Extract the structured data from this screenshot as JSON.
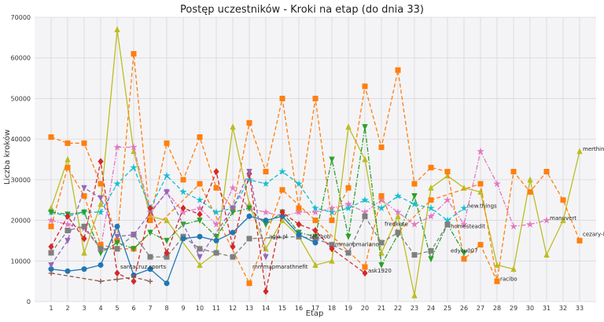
{
  "chart_data": {
    "type": "line",
    "title": "Postęp uczestników - Kroki na etap (do dnia 33)",
    "xlabel": "Etap",
    "ylabel": "Liczba kroków",
    "x": [
      1,
      2,
      3,
      4,
      5,
      6,
      7,
      8,
      9,
      10,
      11,
      12,
      13,
      14,
      15,
      16,
      17,
      18,
      19,
      20,
      21,
      22,
      23,
      24,
      25,
      26,
      27,
      28,
      29,
      30,
      31,
      32,
      33
    ],
    "ylim": [
      0,
      70000
    ],
    "yticks": [
      0,
      10000,
      20000,
      30000,
      40000,
      50000,
      60000,
      70000
    ],
    "grid": true,
    "series": [
      {
        "name": "merthin",
        "color": "#bcbd22",
        "marker": "triangle-up",
        "dash": "solid",
        "values": [
          23000,
          35000,
          12000,
          24000,
          67000,
          37000,
          21000,
          20000,
          null,
          9000,
          12000,
          43000,
          24000,
          13000,
          20000,
          16000,
          9000,
          10000,
          43000,
          35000,
          12000,
          21000,
          1500,
          28000,
          31000,
          28000,
          27000,
          9000,
          8000,
          30000,
          11500,
          20000,
          37000
        ]
      },
      {
        "name": "manuvert",
        "color": "#e377c2",
        "marker": "star",
        "dash": "dashdot",
        "values": [
          20000,
          19000,
          18000,
          13000,
          38000,
          38000,
          22000,
          27000,
          22000,
          23000,
          19000,
          28000,
          23000,
          22000,
          21000,
          22000,
          22000,
          23000,
          24000,
          22000,
          25000,
          22000,
          19000,
          21000,
          25000,
          19000,
          37000,
          29000,
          18500,
          19000,
          20000,
          null,
          null
        ]
      },
      {
        "name": "cezary-io",
        "color": "#ff7f0e",
        "marker": "square",
        "dash": "dashed",
        "values": [
          40500,
          39000,
          39000,
          29000,
          15000,
          61000,
          20000,
          39000,
          30000,
          40500,
          28000,
          23000,
          44000,
          32000,
          50000,
          23000,
          50000,
          20000,
          28000,
          53000,
          38000,
          57000,
          29000,
          33000,
          32000,
          10500,
          14000,
          5000,
          32000,
          27000,
          32000,
          25000,
          15000
        ]
      },
      {
        "name": "racibo",
        "color": "#ff7f0e",
        "marker": "square",
        "dash": "dashed",
        "values": [
          18500,
          33000,
          26000,
          14000,
          13000,
          13000,
          null,
          null,
          null,
          29000,
          null,
          null,
          4500,
          null,
          27500,
          null,
          20000,
          null,
          null,
          8500,
          26000,
          17000,
          null,
          25000,
          null,
          null,
          29000,
          5000,
          null,
          null,
          null,
          null,
          null
        ]
      },
      {
        "name": "new.things",
        "color": "#17becf",
        "marker": "star",
        "dash": "dashed",
        "values": [
          22000,
          21000,
          22000,
          22000,
          29000,
          33000,
          23000,
          31000,
          27000,
          25000,
          22000,
          23000,
          30000,
          29000,
          32000,
          29000,
          23000,
          22000,
          23000,
          25000,
          23000,
          26000,
          24000,
          23000,
          20000,
          23000,
          null,
          null,
          null,
          null,
          null,
          null,
          null
        ]
      },
      {
        "name": "edycu007",
        "color": "#2ca02c",
        "marker": "triangle-down",
        "dash": "dashdot",
        "values": [
          22000,
          21500,
          22000,
          12000,
          14500,
          13000,
          17000,
          15000,
          19000,
          20000,
          16000,
          22000,
          23000,
          19000,
          22000,
          17000,
          16000,
          35000,
          16000,
          43000,
          9000,
          16500,
          26000,
          10500,
          19000,
          12000,
          null,
          null,
          null,
          null,
          null,
          null,
          null
        ]
      },
      {
        "name": "homesteadit",
        "color": "#7f7f7f",
        "marker": "square",
        "dash": "dashed",
        "values": [
          12000,
          17500,
          18500,
          13000,
          13000,
          16500,
          11000,
          11000,
          16000,
          13000,
          12000,
          11000,
          15500,
          null,
          null,
          16000,
          15500,
          14000,
          12000,
          21000,
          14500,
          17000,
          11500,
          12500,
          19000,
          null,
          null,
          null,
          null,
          null,
          null,
          null,
          null
        ]
      },
      {
        "name": "fredkese",
        "color": "#1f77b4",
        "marker": "circle",
        "dash": "solid",
        "values": [
          8000,
          7500,
          8000,
          9000,
          18500,
          6500,
          8000,
          4500,
          15500,
          16000,
          15000,
          17000,
          21000,
          20000,
          21000,
          16500,
          14500,
          null,
          null,
          null,
          null,
          null,
          null,
          null,
          null,
          null,
          null,
          null,
          null,
          null,
          null,
          null,
          null
        ]
      },
      {
        "name": "mmanpmariano",
        "color": "#d62728",
        "marker": "diamond",
        "dash": "dashed",
        "values": [
          13500,
          21000,
          15500,
          34500,
          7000,
          5000,
          23000,
          12000,
          23000,
          21500,
          32000,
          13500,
          31500,
          2500,
          22000,
          19000,
          17500,
          13000,
          null,
          7000,
          null,
          null,
          null,
          null,
          null,
          null,
          null,
          null,
          null,
          null,
          null,
          null,
          null
        ]
      },
      {
        "name": "mmmapmarathnefit",
        "color": "#9467bd",
        "marker": "triangle-down",
        "dash": "dashed",
        "values": [
          9000,
          15000,
          28000,
          25500,
          16000,
          16500,
          null,
          27000,
          null,
          11000,
          null,
          23000,
          32000,
          11000,
          null,
          null,
          null,
          null,
          null,
          null,
          null,
          null,
          null,
          null,
          null,
          null,
          null,
          null,
          null,
          null,
          null,
          null,
          null
        ]
      },
      {
        "name": "santacruz.sports",
        "color": "#8c564b",
        "marker": "plus",
        "dash": "dashed",
        "values": [
          7000,
          null,
          null,
          5000,
          5500,
          6000,
          5000,
          null,
          null,
          null,
          null,
          null,
          null,
          null,
          null,
          null,
          null,
          null,
          null,
          null,
          null,
          null,
          null,
          null,
          null,
          null,
          null,
          null,
          null,
          null,
          null,
          null,
          null
        ]
      }
    ],
    "end_labels": [
      {
        "text": "merthin",
        "x": 33,
        "y": 37500
      },
      {
        "text": "manuvert",
        "x": 31,
        "y": 20500
      },
      {
        "text": "cezary-io",
        "x": 33,
        "y": 16500
      },
      {
        "text": "new.things",
        "x": 26,
        "y": 23500
      },
      {
        "text": "homesteadit",
        "x": 25,
        "y": 18500
      },
      {
        "text": "fredkese",
        "x": 21,
        "y": 19000
      },
      {
        "text": "edycu007",
        "x": 25,
        "y": 12500
      },
      {
        "text": "racibo",
        "x": 28,
        "y": 5500
      },
      {
        "text": "ask1920",
        "x": 20,
        "y": 7500
      },
      {
        "text": "mmanpmariano",
        "x": 18,
        "y": 14000
      },
      {
        "text": "letzbob",
        "x": 16.5,
        "y": 16000
      },
      {
        "text": "agia.pl",
        "x": 14,
        "y": 16000
      },
      {
        "text": "mmmapmarathnefit",
        "x": 13,
        "y": 8500
      },
      {
        "text": "santacruz.sports",
        "x": 5,
        "y": 8500
      }
    ]
  }
}
